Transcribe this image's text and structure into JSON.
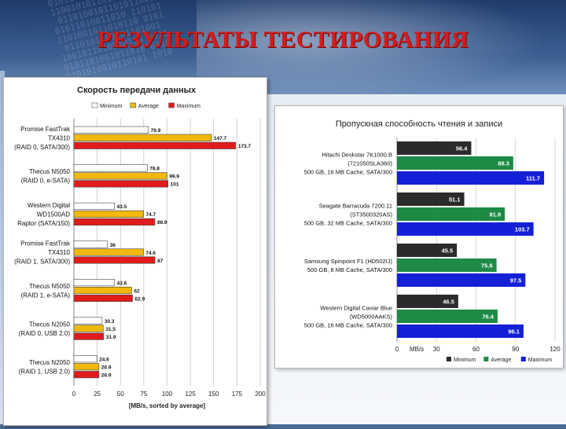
{
  "page": {
    "title": "РЕЗУЛЬТАТЫ ТЕСТИРОВАНИЯ"
  },
  "colors": {
    "title": "#d51c1c",
    "minimum_left": "#ffffff",
    "average_left": "#f2b80c",
    "maximum_left": "#e11b1b",
    "minimum_right": "#2b2b2b",
    "average_right": "#1e8a46",
    "maximum_right": "#1420d6"
  },
  "chart_data": [
    {
      "type": "bar",
      "orientation": "horizontal",
      "title": "Скорость передачи данных",
      "xlabel": "[MB/s, sorted by average]",
      "xlim": [
        0,
        200
      ],
      "xticks": [
        0,
        25,
        50,
        75,
        100,
        125,
        150,
        175,
        200
      ],
      "grid": true,
      "legend_position": "top",
      "categories": [
        [
          "Promise FastTrak",
          "TX4310",
          "(RAID 0, SATA/300)"
        ],
        [
          "Thecus N5050",
          "(RAID 0, e-SATA)"
        ],
        [
          "Western Digital",
          "WD1500AD",
          "Raptor (SATA/150)"
        ],
        [
          "Promise FastTrak",
          "TX4310",
          "(RAID 1, SATA/300)"
        ],
        [
          "Thecus N5050",
          "(RAID 1, e-SATA)"
        ],
        [
          "Thecus N2050",
          "(RAID 0, USB 2.0)"
        ],
        [
          "Thecus N2050",
          "(RAID 1, USB 2.0)"
        ]
      ],
      "series": [
        {
          "name": "Minimum",
          "values": [
            79.9,
            78.8,
            43.5,
            36.0,
            43.6,
            30.3,
            24.6
          ]
        },
        {
          "name": "Average",
          "values": [
            147.7,
            99.9,
            74.7,
            74.6,
            62,
            31.5,
            26.9
          ]
        },
        {
          "name": "Maximum",
          "values": [
            173.7,
            101,
            86.9,
            87,
            62.9,
            31.9,
            26.9
          ]
        }
      ]
    },
    {
      "type": "bar",
      "orientation": "horizontal",
      "title": "Пропускная способность чтения и записи",
      "xlabel": "MB/s",
      "xlim": [
        0,
        120
      ],
      "xticks": [
        0,
        30,
        60,
        90,
        120
      ],
      "grid": true,
      "legend_position": "bottom",
      "categories": [
        [
          "Hitachi Deskstar 7K1000.B",
          "(721050SLA360)",
          "500 GB, 16 MB Cache, SATA/300"
        ],
        [
          "Seagate Barracuda 7200.11",
          "(ST3500320AS)",
          "500 GB, 32 MB Cache, SATA/300"
        ],
        [
          "Samsung Spinpoint F1 (HD502IJ)",
          "500 GB, 8 MB Cache, SATA/300"
        ],
        [
          "Western Digital Caviar Blue",
          "(WD5000AAKS)",
          "500 GB, 16 MB Cache, SATA/300"
        ]
      ],
      "series": [
        {
          "name": "Minimum",
          "values": [
            56.4,
            51.1,
            45.5,
            46.5
          ]
        },
        {
          "name": "Average",
          "values": [
            88.3,
            81.9,
            75.6,
            76.4
          ]
        },
        {
          "name": "Maximum",
          "values": [
            111.7,
            103.7,
            97.5,
            96.1
          ]
        }
      ]
    }
  ]
}
